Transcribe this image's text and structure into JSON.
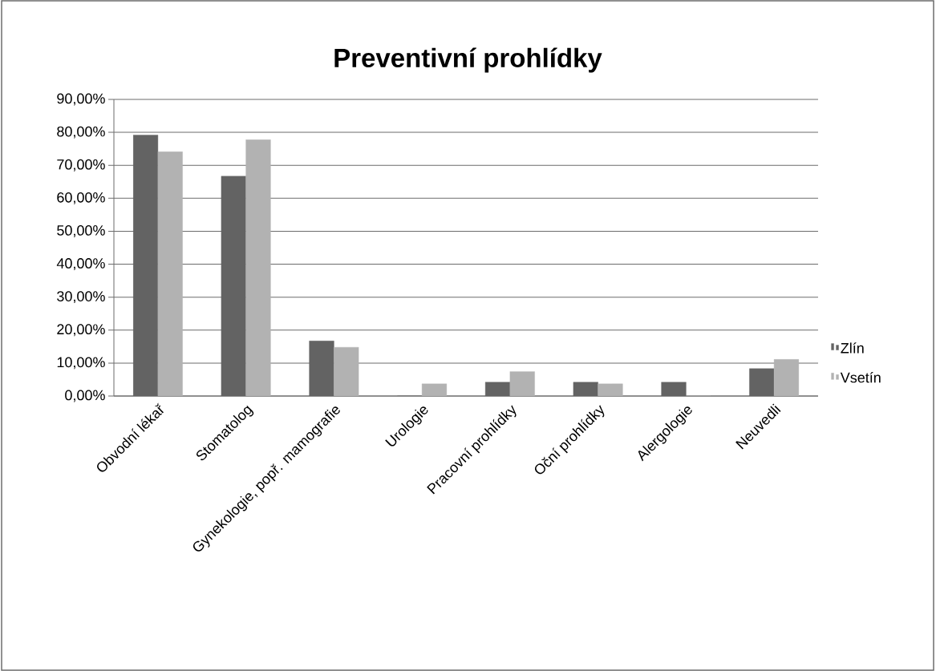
{
  "chart_data": {
    "type": "bar",
    "title": "Preventivní prohlídky",
    "categories": [
      "Obvodní lékař",
      "Stomatolog",
      "Gynekologie, popř. mamografie",
      "Urologie",
      "Pracovní prohlídky",
      "Oční prohlídky",
      "Alergologie",
      "Neuvedli"
    ],
    "series": [
      {
        "name": "Zlín",
        "color": "#636363",
        "values": [
          79.2,
          66.7,
          16.7,
          0,
          4.2,
          4.2,
          4.2,
          8.3
        ]
      },
      {
        "name": "Vsetín",
        "color": "#b2b2b2",
        "values": [
          74.1,
          77.8,
          14.8,
          3.7,
          7.4,
          3.7,
          0,
          11.1
        ]
      }
    ],
    "ylim": [
      0,
      90
    ],
    "yticks": [
      {
        "value": 0,
        "label": "0,00%"
      },
      {
        "value": 10,
        "label": "10,00%"
      },
      {
        "value": 20,
        "label": "20,00%"
      },
      {
        "value": 30,
        "label": "30,00%"
      },
      {
        "value": 40,
        "label": "40,00%"
      },
      {
        "value": 50,
        "label": "50,00%"
      },
      {
        "value": 60,
        "label": "60,00%"
      },
      {
        "value": 70,
        "label": "70,00%"
      },
      {
        "value": 80,
        "label": "80,00%"
      },
      {
        "value": 90,
        "label": "90,00%"
      }
    ],
    "grid": "y",
    "legend": "right"
  }
}
